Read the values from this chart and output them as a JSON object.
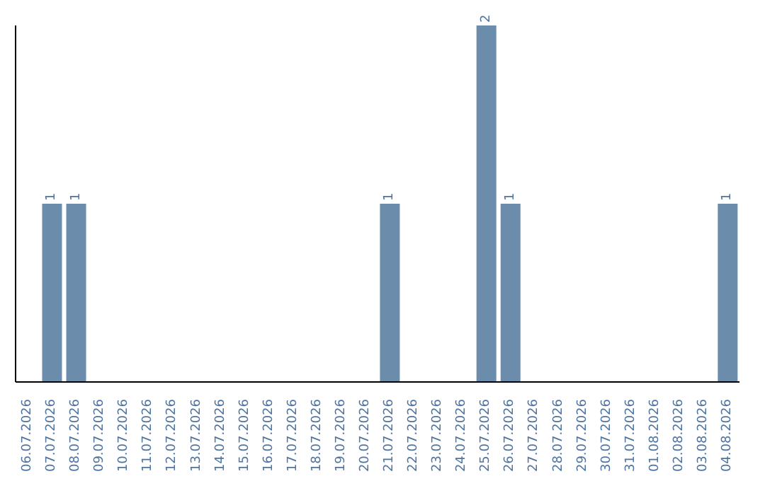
{
  "chart_data": {
    "type": "bar",
    "categories": [
      "06.07.2026",
      "07.07.2026",
      "08.07.2026",
      "09.07.2026",
      "10.07.2026",
      "11.07.2026",
      "12.07.2026",
      "13.07.2026",
      "14.07.2026",
      "15.07.2026",
      "16.07.2026",
      "17.07.2026",
      "18.07.2026",
      "19.07.2026",
      "20.07.2026",
      "21.07.2026",
      "22.07.2026",
      "23.07.2026",
      "24.07.2026",
      "25.07.2026",
      "26.07.2026",
      "27.07.2026",
      "28.07.2026",
      "29.07.2026",
      "30.07.2026",
      "31.07.2026",
      "01.08.2026",
      "02.08.2026",
      "03.08.2026",
      "04.08.2026"
    ],
    "values": [
      0,
      1,
      1,
      0,
      0,
      0,
      0,
      0,
      0,
      0,
      0,
      0,
      0,
      0,
      0,
      1,
      0,
      0,
      0,
      2,
      1,
      0,
      0,
      0,
      0,
      0,
      0,
      0,
      0,
      1
    ],
    "color": "#6b8cab",
    "value_labels": [
      null,
      "1",
      "1",
      null,
      null,
      null,
      null,
      null,
      null,
      null,
      null,
      null,
      null,
      null,
      null,
      "1",
      null,
      null,
      null,
      "2",
      "1",
      null,
      null,
      null,
      null,
      null,
      null,
      null,
      null,
      "1"
    ],
    "grid": false,
    "legend": false
  }
}
